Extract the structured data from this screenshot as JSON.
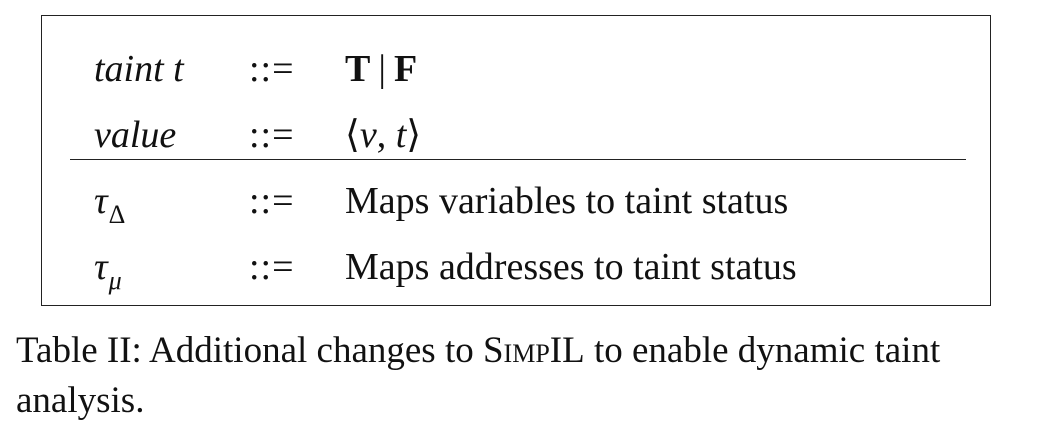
{
  "table": {
    "rows": [
      {
        "lhs": "taint t",
        "op": "::=",
        "rhs_parts": [
          "T",
          "|",
          "F"
        ]
      },
      {
        "lhs": "value",
        "op": "::=",
        "rhs_parts": [
          "⟨",
          "v",
          ",",
          " ",
          "t",
          "⟩"
        ]
      },
      {
        "lhs_symbol": "τ",
        "lhs_subscript": "Δ",
        "op": "::=",
        "rhs": "Maps variables to taint status"
      },
      {
        "lhs_symbol": "τ",
        "lhs_subscript": "μ",
        "op": "::=",
        "rhs": "Maps addresses to taint status"
      }
    ]
  },
  "caption": {
    "prefix": "Table II: Additional changes to ",
    "name": "SimpIL",
    "suffix": " to enable dynamic taint analysis."
  }
}
